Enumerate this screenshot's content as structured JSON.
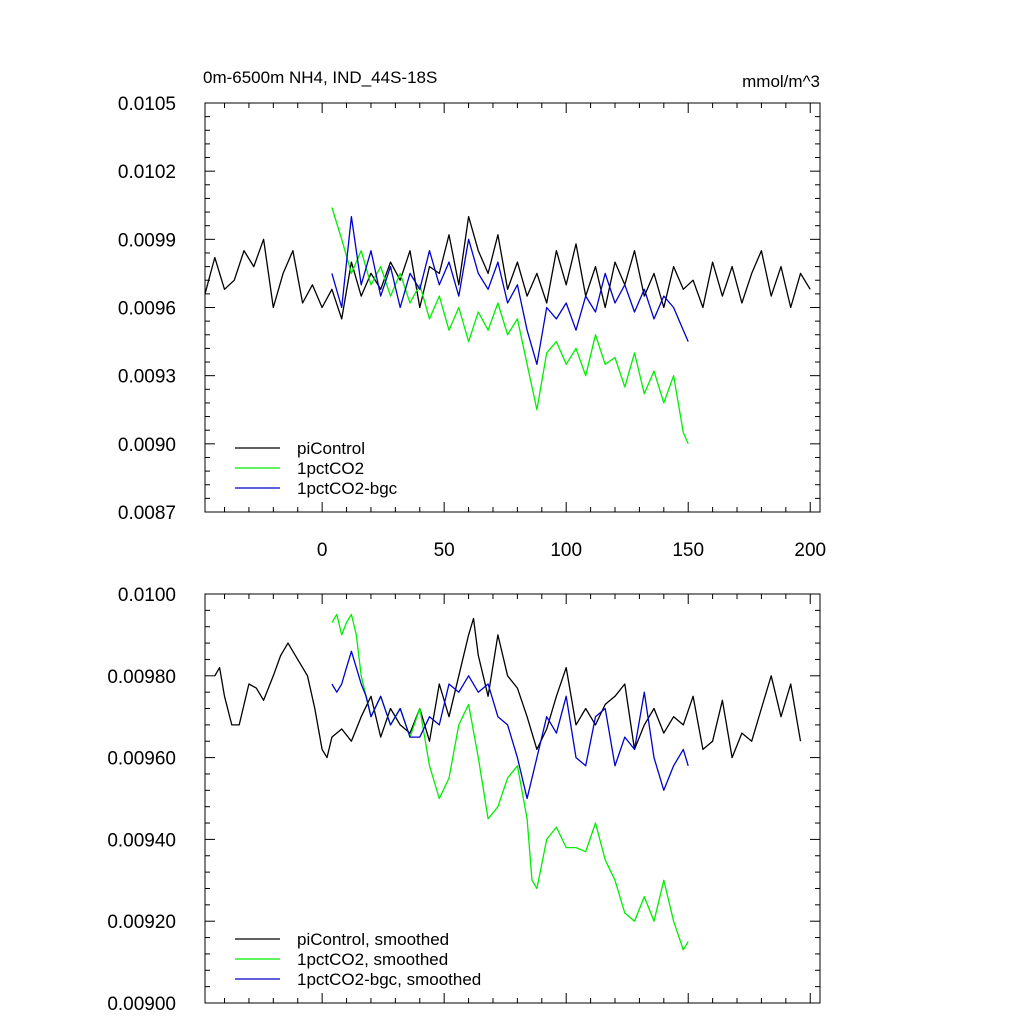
{
  "chart_data": [
    {
      "type": "line",
      "title": "0m-6500m NH4, IND_44S-18S",
      "units": "mmol/m^3",
      "xlim": [
        -48,
        204
      ],
      "ylim": [
        0.0087,
        0.0105
      ],
      "xticks": [
        0,
        50,
        100,
        150,
        200
      ],
      "xtick_labels": [
        "0",
        "50",
        "100",
        "150",
        "200"
      ],
      "yticks": [
        0.0087,
        0.009,
        0.0093,
        0.0096,
        0.0099,
        0.0102,
        0.0105
      ],
      "ytick_labels": [
        "0.0087",
        "0.0090",
        "0.0093",
        "0.0096",
        "0.0099",
        "0.0102",
        "0.0105"
      ],
      "legend_position": "bottom-left",
      "series": [
        {
          "name": "piControl",
          "color": "#000000",
          "x": [
            -48,
            -44,
            -40,
            -36,
            -32,
            -28,
            -24,
            -20,
            -16,
            -12,
            -8,
            -4,
            0,
            4,
            8,
            12,
            16,
            20,
            24,
            28,
            32,
            36,
            40,
            44,
            48,
            52,
            56,
            60,
            64,
            68,
            72,
            76,
            80,
            84,
            88,
            92,
            96,
            100,
            104,
            108,
            112,
            116,
            120,
            124,
            128,
            132,
            136,
            140,
            144,
            148,
            152,
            156,
            160,
            164,
            168,
            172,
            176,
            180,
            184,
            188,
            192,
            196,
            200
          ],
          "y": [
            0.00966,
            0.00982,
            0.00968,
            0.00972,
            0.00985,
            0.00978,
            0.0099,
            0.0096,
            0.00975,
            0.00985,
            0.00962,
            0.0097,
            0.0096,
            0.00968,
            0.00955,
            0.0098,
            0.00965,
            0.00975,
            0.00968,
            0.0098,
            0.00972,
            0.00985,
            0.0096,
            0.00978,
            0.00975,
            0.00992,
            0.0097,
            0.01,
            0.00985,
            0.00975,
            0.00992,
            0.00968,
            0.0098,
            0.00965,
            0.00975,
            0.00962,
            0.00985,
            0.0097,
            0.00988,
            0.00965,
            0.00978,
            0.0096,
            0.0098,
            0.0097,
            0.00985,
            0.00965,
            0.00975,
            0.0096,
            0.00978,
            0.00968,
            0.00972,
            0.0096,
            0.0098,
            0.00965,
            0.00978,
            0.00962,
            0.00975,
            0.00985,
            0.00965,
            0.00978,
            0.0096,
            0.00975,
            0.00968
          ]
        },
        {
          "name": "1pctCO2",
          "color": "#00ee00",
          "x": [
            4,
            8,
            12,
            16,
            20,
            24,
            28,
            32,
            36,
            40,
            44,
            48,
            52,
            56,
            60,
            64,
            68,
            72,
            76,
            80,
            84,
            88,
            92,
            96,
            100,
            104,
            108,
            112,
            116,
            120,
            124,
            128,
            132,
            136,
            140,
            144,
            148,
            150
          ],
          "y": [
            0.01004,
            0.0099,
            0.00975,
            0.00985,
            0.0097,
            0.00978,
            0.00965,
            0.00975,
            0.00962,
            0.0097,
            0.00955,
            0.00965,
            0.0095,
            0.0096,
            0.00945,
            0.00958,
            0.0095,
            0.00962,
            0.00948,
            0.00955,
            0.00935,
            0.00915,
            0.0094,
            0.00945,
            0.00935,
            0.00942,
            0.0093,
            0.00948,
            0.00935,
            0.00938,
            0.00925,
            0.0094,
            0.00922,
            0.00932,
            0.00918,
            0.0093,
            0.00905,
            0.009
          ]
        },
        {
          "name": "1pctCO2-bgc",
          "color": "#0000cc",
          "x": [
            4,
            8,
            12,
            16,
            20,
            24,
            28,
            32,
            36,
            40,
            44,
            48,
            52,
            56,
            60,
            64,
            68,
            72,
            76,
            80,
            84,
            88,
            92,
            96,
            100,
            104,
            108,
            112,
            116,
            120,
            124,
            128,
            132,
            136,
            140,
            144,
            148,
            150
          ],
          "y": [
            0.00975,
            0.0096,
            0.01,
            0.0097,
            0.00985,
            0.00965,
            0.00978,
            0.0096,
            0.00975,
            0.00968,
            0.00985,
            0.0097,
            0.0098,
            0.00965,
            0.0099,
            0.00975,
            0.00968,
            0.0098,
            0.00962,
            0.0097,
            0.0095,
            0.00935,
            0.0096,
            0.00955,
            0.00962,
            0.0095,
            0.00965,
            0.00958,
            0.00975,
            0.00962,
            0.0097,
            0.00958,
            0.00968,
            0.00955,
            0.00965,
            0.0096,
            0.0095,
            0.00945
          ]
        }
      ]
    },
    {
      "type": "line",
      "title": "",
      "xlim": [
        -48,
        204
      ],
      "ylim": [
        0.009,
        0.01
      ],
      "xticks": [
        0,
        50,
        100,
        150,
        200
      ],
      "yticks": [
        0.009,
        0.0092,
        0.0094,
        0.0096,
        0.0098,
        0.01
      ],
      "ytick_labels": [
        "0.00900",
        "0.00920",
        "0.00940",
        "0.00960",
        "0.00980",
        "0.0100"
      ],
      "legend_position": "bottom-left",
      "series": [
        {
          "name": "piControl, smoothed",
          "color": "#000000",
          "x": [
            -44,
            -42,
            -40,
            -37,
            -34,
            -30,
            -27,
            -24,
            -20,
            -17,
            -14,
            -10,
            -6,
            -3,
            0,
            2,
            4,
            8,
            12,
            16,
            20,
            24,
            28,
            32,
            36,
            40,
            44,
            48,
            52,
            56,
            60,
            62,
            64,
            68,
            72,
            76,
            80,
            84,
            88,
            92,
            96,
            100,
            104,
            108,
            112,
            116,
            120,
            124,
            128,
            132,
            136,
            140,
            144,
            148,
            152,
            156,
            160,
            164,
            168,
            172,
            176,
            180,
            184,
            188,
            192,
            196
          ],
          "y": [
            0.0098,
            0.00982,
            0.00975,
            0.00968,
            0.00968,
            0.00978,
            0.00977,
            0.00974,
            0.0098,
            0.00985,
            0.00988,
            0.00984,
            0.0098,
            0.00972,
            0.00962,
            0.0096,
            0.00965,
            0.00967,
            0.00964,
            0.0097,
            0.00975,
            0.00965,
            0.00972,
            0.00968,
            0.00966,
            0.00972,
            0.00964,
            0.00978,
            0.0097,
            0.0098,
            0.0099,
            0.00994,
            0.00985,
            0.00975,
            0.0099,
            0.0098,
            0.00977,
            0.0097,
            0.00962,
            0.00967,
            0.00975,
            0.00982,
            0.00968,
            0.00972,
            0.00968,
            0.00973,
            0.00975,
            0.00978,
            0.00962,
            0.00968,
            0.00972,
            0.00966,
            0.0097,
            0.00968,
            0.00975,
            0.00962,
            0.00964,
            0.00974,
            0.0096,
            0.00966,
            0.00964,
            0.00972,
            0.0098,
            0.0097,
            0.00978,
            0.00964
          ]
        },
        {
          "name": "1pctCO2, smoothed",
          "color": "#00ee00",
          "x": [
            4,
            6,
            8,
            10,
            12,
            14,
            16,
            18,
            20,
            24,
            28,
            32,
            36,
            40,
            44,
            48,
            52,
            56,
            60,
            64,
            68,
            72,
            76,
            80,
            84,
            86,
            88,
            92,
            96,
            100,
            104,
            108,
            112,
            116,
            120,
            124,
            128,
            132,
            136,
            140,
            144,
            148,
            150
          ],
          "y": [
            0.00993,
            0.00995,
            0.0099,
            0.00993,
            0.00995,
            0.0099,
            0.0098,
            0.00975,
            0.0097,
            0.00975,
            0.00968,
            0.00972,
            0.00965,
            0.00972,
            0.00958,
            0.0095,
            0.00955,
            0.00968,
            0.00973,
            0.0096,
            0.00945,
            0.00948,
            0.00955,
            0.00958,
            0.00945,
            0.0093,
            0.00928,
            0.0094,
            0.00943,
            0.00938,
            0.00938,
            0.00937,
            0.00944,
            0.00935,
            0.0093,
            0.00922,
            0.0092,
            0.00926,
            0.0092,
            0.0093,
            0.0092,
            0.00913,
            0.00915
          ]
        },
        {
          "name": "1pctCO2-bgc, smoothed",
          "color": "#0000cc",
          "x": [
            4,
            6,
            8,
            10,
            12,
            14,
            16,
            18,
            20,
            24,
            28,
            32,
            36,
            40,
            44,
            48,
            52,
            56,
            60,
            64,
            68,
            72,
            76,
            80,
            84,
            88,
            92,
            96,
            100,
            104,
            108,
            112,
            116,
            120,
            124,
            128,
            132,
            136,
            140,
            144,
            148,
            150
          ],
          "y": [
            0.00978,
            0.00976,
            0.00978,
            0.00982,
            0.00986,
            0.00982,
            0.00978,
            0.00975,
            0.0097,
            0.00975,
            0.00968,
            0.00972,
            0.00965,
            0.00965,
            0.0097,
            0.00968,
            0.00978,
            0.00976,
            0.0098,
            0.00976,
            0.00978,
            0.0097,
            0.00968,
            0.0096,
            0.0095,
            0.0096,
            0.0097,
            0.00966,
            0.00975,
            0.0096,
            0.00958,
            0.0097,
            0.00972,
            0.00958,
            0.00965,
            0.00962,
            0.00976,
            0.0096,
            0.00952,
            0.00958,
            0.00962,
            0.00958
          ]
        }
      ]
    }
  ]
}
